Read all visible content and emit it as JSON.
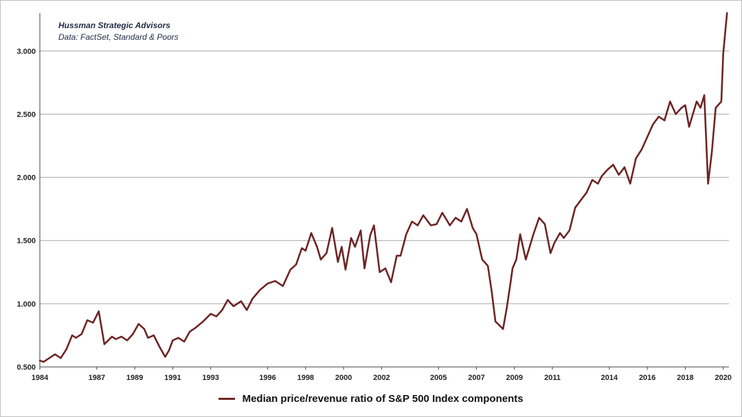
{
  "credits": {
    "line1": "Hussman Strategic Advisors",
    "line2": "Data: FactSet, Standard & Poors"
  },
  "colors": {
    "series": "#6e2424",
    "grid": "#a6a6a6",
    "axis": "#404040"
  },
  "chart_data": {
    "type": "line",
    "title": "",
    "xlabel": "",
    "ylabel": "",
    "xlim": [
      1984,
      2020.3
    ],
    "ylim": [
      0.5,
      3.3
    ],
    "grid": true,
    "legend_placement": "bottom",
    "y_ticks": [
      "0.500",
      "1.000",
      "1.500",
      "2.000",
      "2.500",
      "3.000"
    ],
    "x_ticks": [
      "1984",
      "1987",
      "1989",
      "1991",
      "1993",
      "1996",
      "1998",
      "2000",
      "2002",
      "2005",
      "2007",
      "2009",
      "2011",
      "2014",
      "2016",
      "2018",
      "2020"
    ],
    "series": [
      {
        "name": "Median price/revenue ratio of S&P 500 Index components",
        "color": "#6e2424",
        "x": [
          1984.0,
          1984.2,
          1984.5,
          1984.8,
          1985.1,
          1985.4,
          1985.7,
          1985.9,
          1986.2,
          1986.5,
          1986.8,
          1987.1,
          1987.4,
          1987.6,
          1987.8,
          1988.0,
          1988.3,
          1988.6,
          1988.9,
          1989.2,
          1989.5,
          1989.7,
          1990.0,
          1990.3,
          1990.6,
          1990.8,
          1991.0,
          1991.3,
          1991.6,
          1991.9,
          1992.2,
          1992.6,
          1993.0,
          1993.3,
          1993.6,
          1993.9,
          1994.2,
          1994.6,
          1994.9,
          1995.2,
          1995.6,
          1996.0,
          1996.4,
          1996.8,
          1997.2,
          1997.5,
          1997.8,
          1998.0,
          1998.3,
          1998.6,
          1998.8,
          1999.1,
          1999.4,
          1999.7,
          1999.9,
          2000.1,
          2000.4,
          2000.6,
          2000.9,
          2001.1,
          2001.4,
          2001.6,
          2001.9,
          2002.2,
          2002.5,
          2002.8,
          2003.0,
          2003.3,
          2003.6,
          2003.9,
          2004.2,
          2004.6,
          2004.9,
          2005.2,
          2005.6,
          2005.9,
          2006.2,
          2006.5,
          2006.8,
          2007.0,
          2007.3,
          2007.6,
          2007.8,
          2008.0,
          2008.2,
          2008.4,
          2008.6,
          2008.8,
          2008.9,
          2009.1,
          2009.3,
          2009.6,
          2009.8,
          2010.0,
          2010.3,
          2010.6,
          2010.9,
          2011.1,
          2011.4,
          2011.6,
          2011.9,
          2012.2,
          2012.5,
          2012.8,
          2013.1,
          2013.4,
          2013.6,
          2013.9,
          2014.2,
          2014.5,
          2014.8,
          2015.1,
          2015.4,
          2015.7,
          2016.0,
          2016.3,
          2016.6,
          2016.9,
          2017.2,
          2017.5,
          2017.8,
          2018.0,
          2018.2,
          2018.4,
          2018.6,
          2018.8,
          2019.0,
          2019.2,
          2019.4,
          2019.6,
          2019.9,
          2020.0,
          2020.2
        ],
        "values": [
          0.55,
          0.54,
          0.57,
          0.6,
          0.57,
          0.64,
          0.75,
          0.73,
          0.76,
          0.87,
          0.85,
          0.94,
          0.68,
          0.71,
          0.74,
          0.72,
          0.74,
          0.71,
          0.76,
          0.84,
          0.8,
          0.73,
          0.75,
          0.66,
          0.58,
          0.63,
          0.71,
          0.73,
          0.7,
          0.78,
          0.81,
          0.86,
          0.92,
          0.9,
          0.95,
          1.03,
          0.98,
          1.02,
          0.95,
          1.04,
          1.11,
          1.16,
          1.18,
          1.14,
          1.27,
          1.31,
          1.44,
          1.42,
          1.56,
          1.45,
          1.35,
          1.4,
          1.6,
          1.33,
          1.45,
          1.27,
          1.52,
          1.45,
          1.58,
          1.28,
          1.54,
          1.62,
          1.25,
          1.28,
          1.17,
          1.38,
          1.38,
          1.55,
          1.65,
          1.62,
          1.7,
          1.62,
          1.63,
          1.72,
          1.62,
          1.68,
          1.65,
          1.75,
          1.6,
          1.55,
          1.35,
          1.3,
          1.1,
          0.86,
          0.83,
          0.8,
          0.97,
          1.17,
          1.28,
          1.35,
          1.55,
          1.35,
          1.45,
          1.55,
          1.68,
          1.63,
          1.4,
          1.48,
          1.56,
          1.52,
          1.58,
          1.76,
          1.82,
          1.88,
          1.98,
          1.95,
          2.01,
          2.06,
          2.1,
          2.02,
          2.08,
          1.95,
          2.15,
          2.22,
          2.32,
          2.42,
          2.48,
          2.45,
          2.6,
          2.5,
          2.55,
          2.57,
          2.4,
          2.5,
          2.6,
          2.55,
          2.65,
          1.95,
          2.2,
          2.55,
          2.6,
          2.98,
          3.3
        ]
      }
    ]
  }
}
